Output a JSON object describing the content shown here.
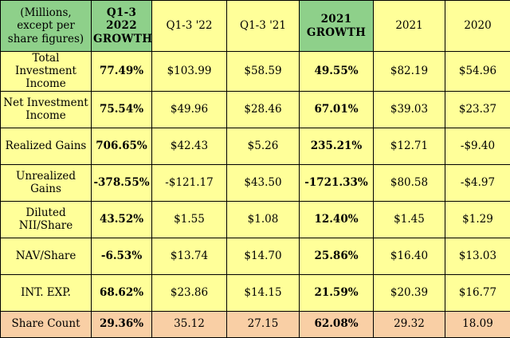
{
  "table": {
    "header": {
      "label": "(Millions, except per share figures)",
      "columns": [
        "Q1-3 2022 GROWTH",
        "Q1-3 '22",
        "Q1-3 '21",
        "2021 GROWTH",
        "2021",
        "2020"
      ]
    },
    "rows": [
      {
        "label": "Total Investment Income",
        "values": [
          "77.49%",
          "$103.99",
          "$58.59",
          "49.55%",
          "$82.19",
          "$54.96"
        ]
      },
      {
        "label": "Net Investment Income",
        "values": [
          "75.54%",
          "$49.96",
          "$28.46",
          "67.01%",
          "$39.03",
          "$23.37"
        ]
      },
      {
        "label": "Realized Gains",
        "values": [
          "706.65%",
          "$42.43",
          "$5.26",
          "235.21%",
          "$12.71",
          "-$9.40"
        ]
      },
      {
        "label": "Unrealized Gains",
        "values": [
          "-378.55%",
          "-$121.17",
          "$43.50",
          "-1721.33%",
          "$80.58",
          "-$4.97"
        ]
      },
      {
        "label": "Diluted NII/Share",
        "values": [
          "43.52%",
          "$1.55",
          "$1.08",
          "12.40%",
          "$1.45",
          "$1.29"
        ]
      },
      {
        "label": "NAV/Share",
        "values": [
          "-6.53%",
          "$13.74",
          "$14.70",
          "25.86%",
          "$16.40",
          "$13.03"
        ]
      },
      {
        "label": "INT. EXP.",
        "values": [
          "68.62%",
          "$23.86",
          "$14.15",
          "21.59%",
          "$20.39",
          "$16.77"
        ]
      },
      {
        "label": "Share Count",
        "values": [
          "29.36%",
          "35.12",
          "27.15",
          "62.08%",
          "29.32",
          "18.09"
        ]
      }
    ]
  },
  "colors": {
    "header_green": "#8ed08a",
    "cell_yellow": "#ffff99",
    "share_count_peach": "#f9cfa5"
  }
}
